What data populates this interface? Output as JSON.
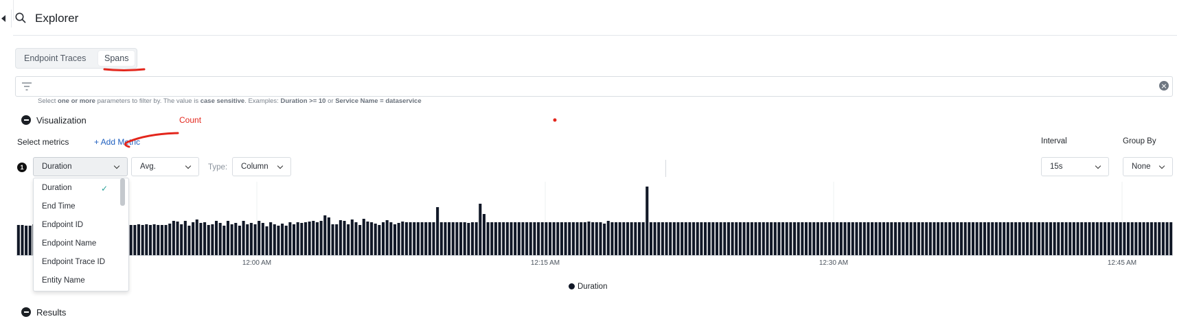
{
  "header": {
    "title": "Explorer"
  },
  "tabs": [
    {
      "label": "Endpoint Traces"
    },
    {
      "label": "Spans"
    }
  ],
  "filter": {
    "help": [
      {
        "text": "Select ",
        "bold": false
      },
      {
        "text": "one or more",
        "bold": true
      },
      {
        "text": " parameters to filter by. The value is ",
        "bold": false
      },
      {
        "text": "case sensitive",
        "bold": true
      },
      {
        "text": ". Examples: ",
        "bold": false
      },
      {
        "text": "Duration >= 10",
        "bold": true
      },
      {
        "text": " or ",
        "bold": false
      },
      {
        "text": "Service Name = dataservice",
        "bold": true
      }
    ]
  },
  "visualization": {
    "title": "Visualization",
    "select_metrics_label": "Select metrics",
    "add_metric_label": "+ Add Metric",
    "interval_label": "Interval",
    "group_by_label": "Group By",
    "metric_number": "1",
    "metric_value": "Duration",
    "aggregation_value": "Avg.",
    "type_label": "Type:",
    "type_value": "Column",
    "interval_value": "15s",
    "group_by_value": "None"
  },
  "metric_options": [
    "Duration",
    "End Time",
    "Endpoint ID",
    "Endpoint Name",
    "Endpoint Trace ID",
    "Entity Name"
  ],
  "results": {
    "title": "Results"
  },
  "annotation": {
    "text": "Count",
    "color": "#e3261c"
  },
  "chart_data": {
    "type": "bar",
    "x_ticks": [
      "12:00 AM",
      "12:15 AM",
      "12:30 AM",
      "12:45 AM"
    ],
    "legend": "Duration",
    "color": "#111827",
    "values": [
      44,
      44,
      43,
      43,
      45,
      44,
      43,
      44,
      44,
      45,
      44,
      43,
      44,
      45,
      44,
      43,
      44,
      45,
      44,
      43,
      44,
      45,
      44,
      43,
      44,
      45,
      44,
      44,
      43,
      44,
      44,
      45,
      44,
      45,
      44,
      45,
      44,
      44,
      44,
      46,
      50,
      49,
      45,
      50,
      43,
      48,
      52,
      47,
      48,
      44,
      45,
      50,
      47,
      43,
      50,
      45,
      47,
      43,
      50,
      45,
      47,
      45,
      50,
      47,
      42,
      48,
      45,
      43,
      46,
      43,
      48,
      45,
      48,
      47,
      48,
      49,
      50,
      48,
      50,
      58,
      55,
      45,
      45,
      51,
      50,
      45,
      52,
      48,
      44,
      53,
      49,
      48,
      46,
      44,
      48,
      51,
      48,
      45,
      47,
      49,
      48,
      48,
      48,
      48,
      48,
      48,
      48,
      48,
      70,
      48,
      48,
      48,
      48,
      48,
      48,
      48,
      47,
      48,
      48,
      75,
      60,
      48,
      48,
      48,
      48,
      48,
      48,
      48,
      48,
      48,
      48,
      48,
      48,
      48,
      48,
      48,
      48,
      48,
      48,
      48,
      48,
      48,
      48,
      48,
      48,
      48,
      48,
      49,
      48,
      48,
      48,
      46,
      50,
      48,
      48,
      48,
      48,
      48,
      48,
      48,
      48,
      48,
      100,
      48,
      48,
      48,
      48,
      48,
      48,
      48,
      48,
      48,
      48,
      48,
      48,
      48,
      48,
      48,
      48,
      48,
      48,
      48,
      48,
      48,
      48,
      48,
      48,
      48,
      48,
      48,
      48,
      48,
      48,
      48,
      48,
      48,
      48,
      48,
      48,
      48,
      48,
      48,
      48,
      48,
      48,
      48,
      48,
      48,
      48,
      48,
      48,
      48,
      48,
      48,
      48,
      48,
      48,
      48,
      48,
      48,
      48,
      48,
      48,
      48,
      48,
      48,
      48,
      48,
      48,
      48,
      48,
      48,
      48,
      48,
      48,
      48,
      48,
      48,
      48,
      48,
      48,
      48,
      48,
      48,
      48,
      48,
      48,
      48,
      48,
      48,
      48,
      48,
      48,
      48,
      48,
      48,
      48,
      48,
      48,
      48,
      48,
      48,
      48,
      48,
      48,
      48,
      48,
      48,
      48,
      48,
      48,
      48,
      48,
      48,
      48,
      48,
      48,
      48,
      48,
      48,
      48,
      48,
      48,
      48,
      48,
      48,
      48,
      48,
      48,
      48,
      48,
      48,
      48,
      48,
      48,
      48,
      48,
      48
    ]
  }
}
